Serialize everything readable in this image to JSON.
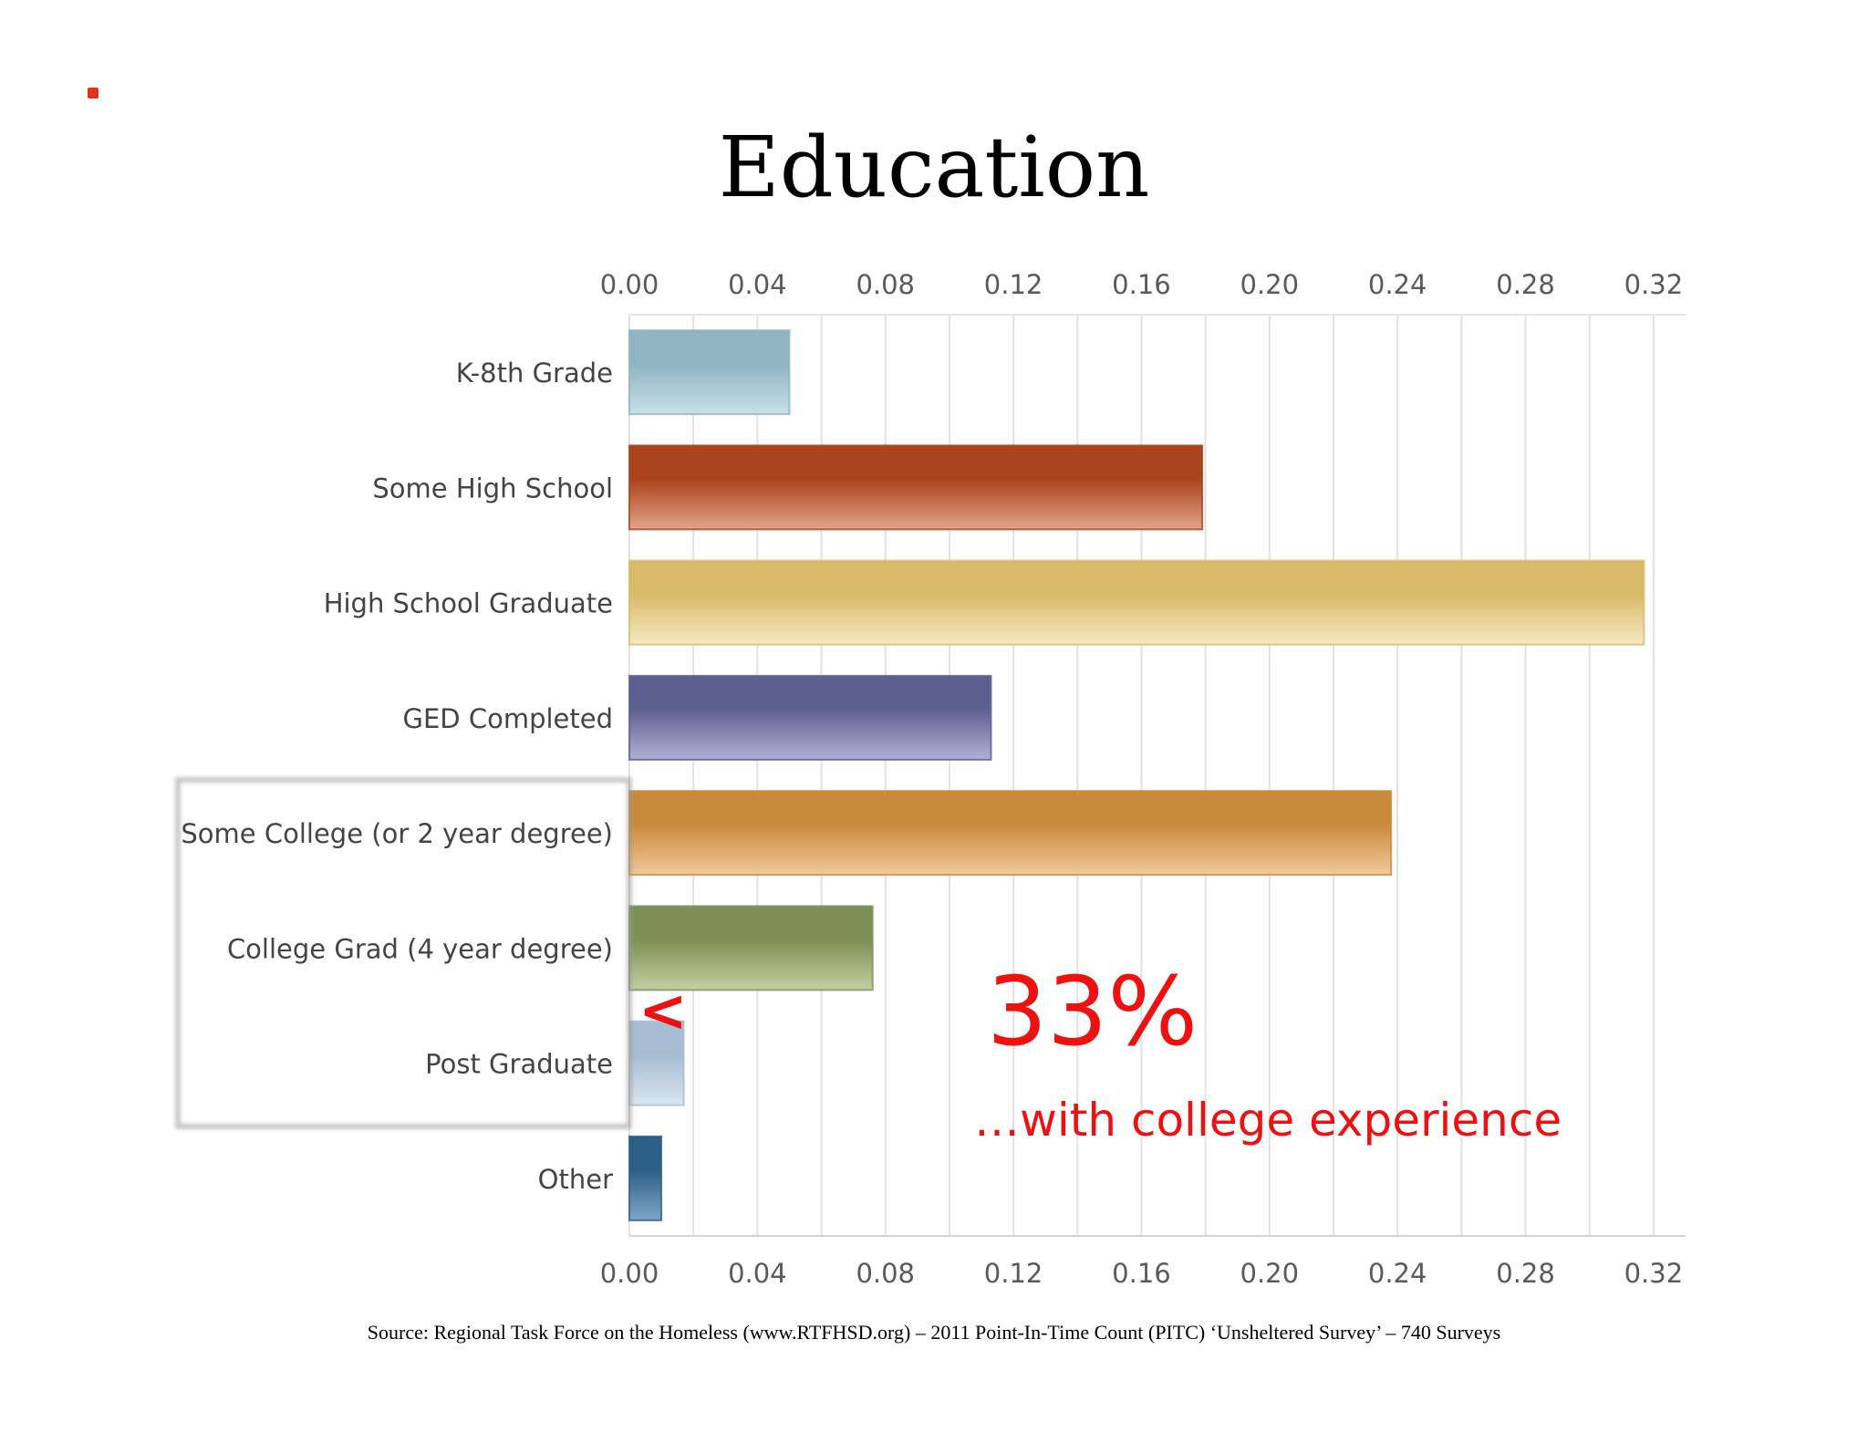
{
  "title": "Education",
  "source": "Source: Regional Task Force on the Homeless (www.RTFHSD.org) – 2011 Point-In-Time Count (PITC) ‘Unsheltered Survey’ – 740 Surveys",
  "annotation": {
    "percent": "33%",
    "caption": "…with college experience",
    "marker": "<",
    "color": "#ee1111"
  },
  "chart_data": {
    "type": "bar",
    "orientation": "horizontal",
    "title": "Education",
    "xlabel": "",
    "ylabel": "",
    "xlim": [
      0,
      0.33
    ],
    "x_ticks": [
      "0.00",
      "0.04",
      "0.08",
      "0.12",
      "0.16",
      "0.20",
      "0.24",
      "0.28",
      "0.32"
    ],
    "grid": true,
    "categories": [
      "K-8th Grade",
      "Some High School",
      "High School Graduate",
      "GED Completed",
      "Some College (or 2 year degree)",
      "College Grad (4 year degree)",
      "Post Graduate",
      "Other"
    ],
    "values": [
      0.05,
      0.179,
      0.317,
      0.113,
      0.238,
      0.076,
      0.017,
      0.01
    ],
    "colors": [
      [
        "#8fb4c2",
        "#c9e0e8"
      ],
      [
        "#a8431d",
        "#e2a48a"
      ],
      [
        "#d8ba69",
        "#f6e9c3"
      ],
      [
        "#5e5f91",
        "#b1b1d6"
      ],
      [
        "#c98a3c",
        "#f1c99a"
      ],
      [
        "#7e8f56",
        "#c5cfa3"
      ],
      [
        "#a7bdd2",
        "#dbe6f0"
      ],
      [
        "#2c5f87",
        "#7ea6c6"
      ]
    ],
    "highlighted_categories": [
      "Some College (or 2 year degree)",
      "College Grad (4 year degree)",
      "Post Graduate"
    ]
  }
}
